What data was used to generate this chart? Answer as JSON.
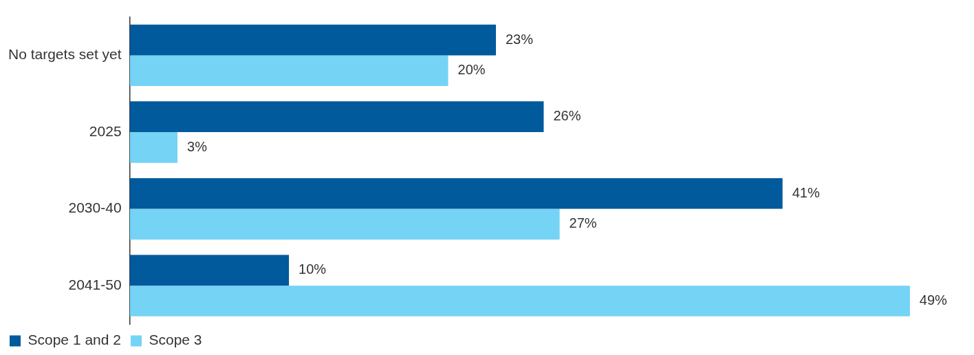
{
  "chart_data": {
    "type": "bar",
    "orientation": "horizontal",
    "categories": [
      "No targets set yet",
      "2025",
      "2030-40",
      "2041-50"
    ],
    "series": [
      {
        "name": "Scope 1 and 2",
        "color": "#005a9c",
        "values": [
          23,
          26,
          41,
          10
        ],
        "value_labels": [
          "23%",
          "26%",
          "41%",
          "10%"
        ]
      },
      {
        "name": "Scope 3",
        "color": "#75d3f5",
        "values": [
          20,
          3,
          27,
          49
        ],
        "value_labels": [
          "20%",
          "3%",
          "27%",
          "49%"
        ]
      }
    ],
    "tick_labels": "y",
    "legend": "bottom left"
  }
}
